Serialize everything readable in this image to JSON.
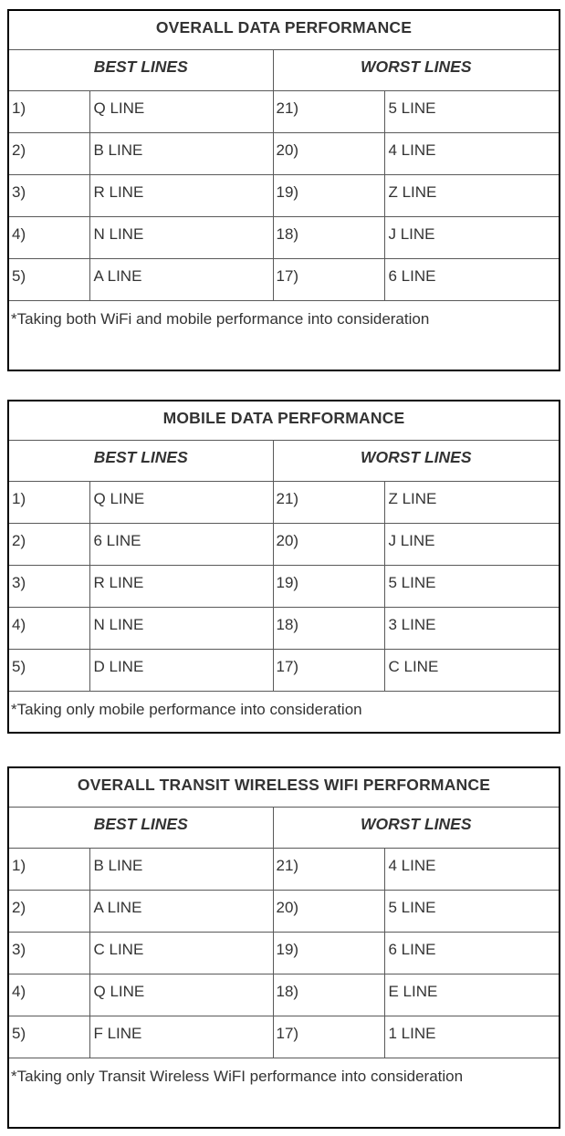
{
  "colors": {
    "text": "#333333",
    "border_outer": "#000000",
    "border_inner": "#595959",
    "bg": "#ffffff"
  },
  "chart_data": [
    {
      "type": "table",
      "title": "OVERALL DATA PERFORMANCE",
      "column_groups": [
        "BEST LINES",
        "WORST LINES"
      ],
      "rows": [
        {
          "best_rank": "1)",
          "best_line": "Q LINE",
          "worst_rank": "21)",
          "worst_line": "5 LINE"
        },
        {
          "best_rank": "2)",
          "best_line": "B LINE",
          "worst_rank": "20)",
          "worst_line": "4 LINE"
        },
        {
          "best_rank": "3)",
          "best_line": "R LINE",
          "worst_rank": "19)",
          "worst_line": "Z LINE"
        },
        {
          "best_rank": "4)",
          "best_line": "N LINE",
          "worst_rank": "18)",
          "worst_line": "J LINE"
        },
        {
          "best_rank": "5)",
          "best_line": "A LINE",
          "worst_rank": "17)",
          "worst_line": "6 LINE"
        }
      ],
      "footnote": "*Taking both WiFi and mobile performance into consideration"
    },
    {
      "type": "table",
      "title": "MOBILE DATA PERFORMANCE",
      "column_groups": [
        "BEST LINES",
        "WORST LINES"
      ],
      "rows": [
        {
          "best_rank": "1)",
          "best_line": "Q LINE",
          "worst_rank": "21)",
          "worst_line": "Z LINE"
        },
        {
          "best_rank": "2)",
          "best_line": "6 LINE",
          "worst_rank": "20)",
          "worst_line": "J LINE"
        },
        {
          "best_rank": "3)",
          "best_line": "R LINE",
          "worst_rank": "19)",
          "worst_line": "5 LINE"
        },
        {
          "best_rank": "4)",
          "best_line": "N LINE",
          "worst_rank": "18)",
          "worst_line": "3 LINE"
        },
        {
          "best_rank": "5)",
          "best_line": "D LINE",
          "worst_rank": "17)",
          "worst_line": "C LINE"
        }
      ],
      "footnote": "*Taking only mobile performance into consideration"
    },
    {
      "type": "table",
      "title": "OVERALL TRANSIT WIRELESS WIFI PERFORMANCE",
      "column_groups": [
        "BEST LINES",
        "WORST LINES"
      ],
      "rows": [
        {
          "best_rank": "1)",
          "best_line": "B LINE",
          "worst_rank": "21)",
          "worst_line": "4 LINE"
        },
        {
          "best_rank": "2)",
          "best_line": "A LINE",
          "worst_rank": "20)",
          "worst_line": "5 LINE"
        },
        {
          "best_rank": "3)",
          "best_line": "C LINE",
          "worst_rank": "19)",
          "worst_line": "6 LINE"
        },
        {
          "best_rank": "4)",
          "best_line": "Q LINE",
          "worst_rank": "18)",
          "worst_line": "E LINE"
        },
        {
          "best_rank": "5)",
          "best_line": "F LINE",
          "worst_rank": "17)",
          "worst_line": "1 LINE"
        }
      ],
      "footnote": "*Taking only Transit Wireless WiFI performance into consideration"
    }
  ]
}
